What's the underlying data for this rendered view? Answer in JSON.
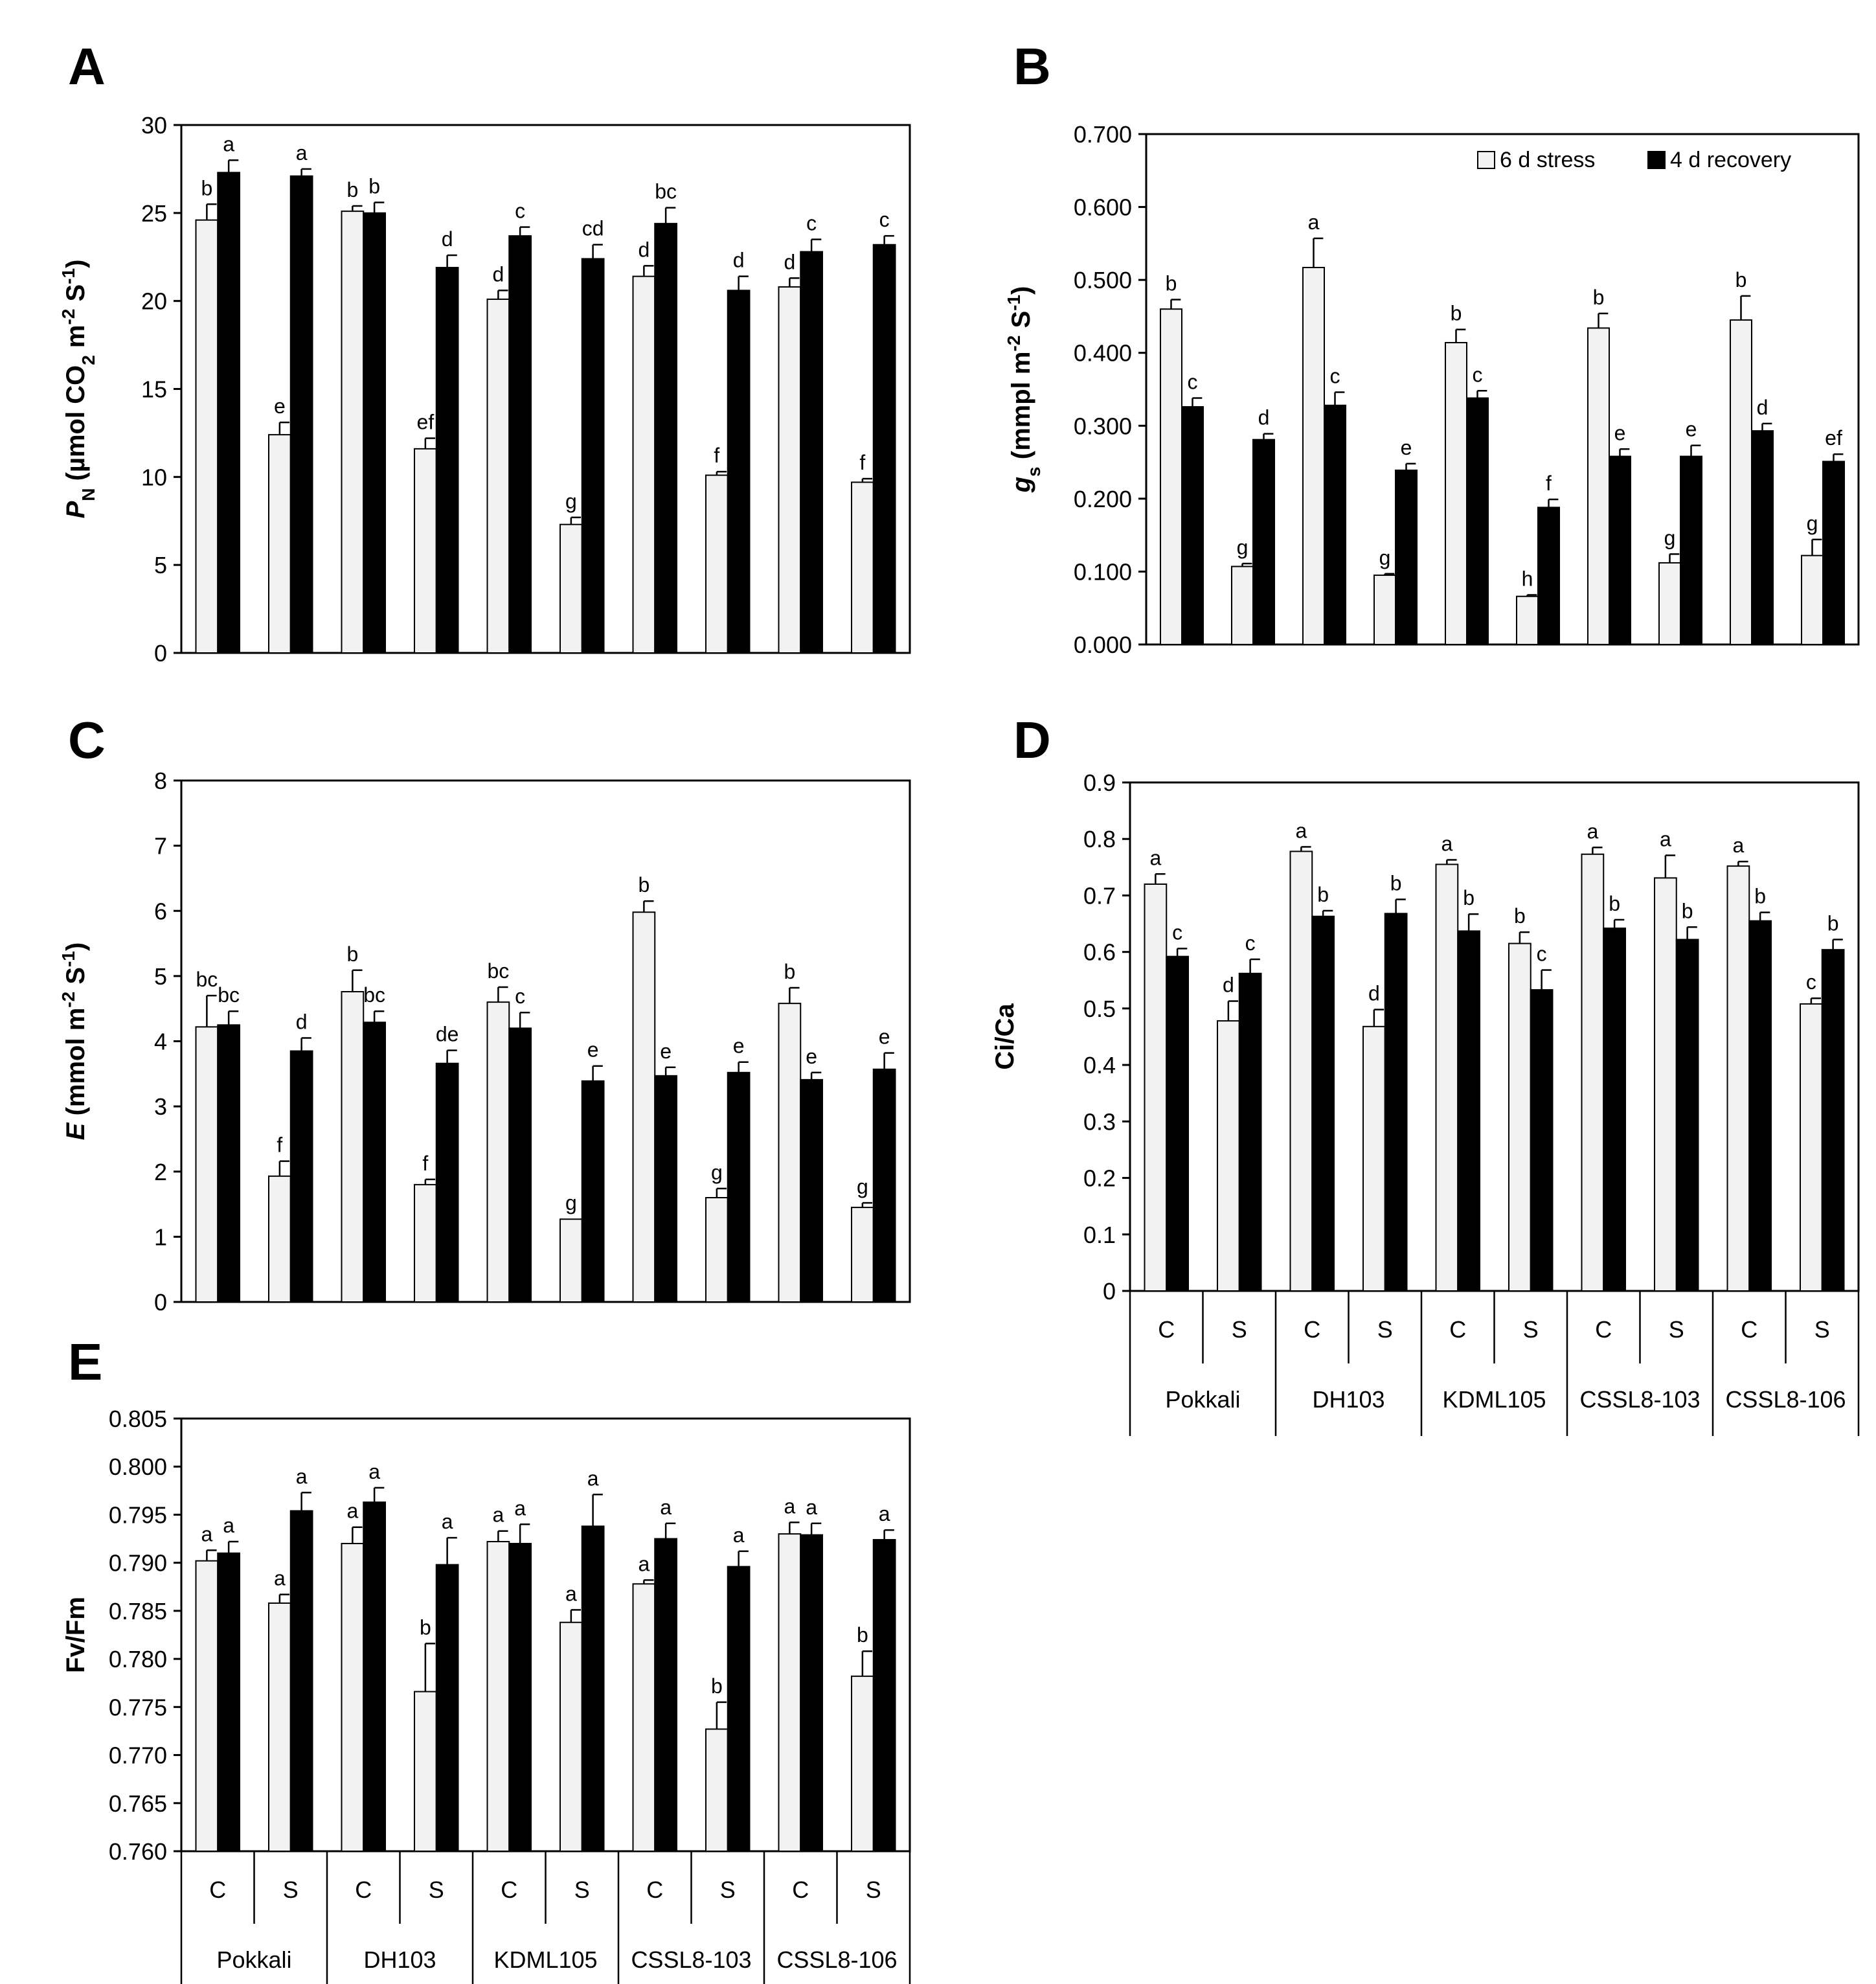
{
  "legend": {
    "series1": "6 d stress",
    "series2": "4 d recovery"
  },
  "colors": {
    "stress": "#f2f2f2",
    "recovery": "#000000",
    "axis": "#000000"
  },
  "xaxis": {
    "treatments": [
      "C",
      "S",
      "C",
      "S",
      "C",
      "S",
      "C",
      "S",
      "C",
      "S"
    ],
    "genotypes": [
      "Pokkali",
      "DH103",
      "KDML105",
      "CSSL8-103",
      "CSSL8-106"
    ]
  },
  "chart_data": [
    {
      "panel": "A",
      "type": "bar",
      "ylabel_parts": [
        "P",
        "N",
        " (µmol CO",
        "2",
        " m",
        "-2",
        " S",
        "-1",
        ")"
      ],
      "ylim": [
        0,
        30
      ],
      "yticks": [
        "0",
        "5",
        "10",
        "15",
        "20",
        "25",
        "30"
      ],
      "categories": [
        "Pokkali C",
        "Pokkali S",
        "DH103 C",
        "DH103 S",
        "KDML105 C",
        "KDML105 S",
        "CSSL8-103 C",
        "CSSL8-103 S",
        "CSSL8-106 C",
        "CSSL8-106 S"
      ],
      "series": [
        {
          "name": "6 d stress",
          "values": [
            24.6,
            12.4,
            25.1,
            11.6,
            20.1,
            7.3,
            21.4,
            10.1,
            20.8,
            9.7
          ],
          "errors": [
            0.9,
            0.7,
            0.3,
            0.6,
            0.5,
            0.4,
            0.6,
            0.2,
            0.5,
            0.2
          ],
          "labels": [
            "b",
            "e",
            "b",
            "ef",
            "d",
            "g",
            "d",
            "f",
            "d",
            "f"
          ]
        },
        {
          "name": "4 d recovery",
          "values": [
            27.3,
            27.1,
            25.0,
            21.9,
            23.7,
            22.4,
            24.4,
            20.6,
            22.8,
            23.2
          ],
          "errors": [
            0.7,
            0.4,
            0.6,
            0.7,
            0.5,
            0.8,
            0.9,
            0.8,
            0.7,
            0.5
          ],
          "labels": [
            "a",
            "a",
            "b",
            "d",
            "c",
            "cd",
            "bc",
            "d",
            "c",
            "c"
          ]
        }
      ]
    },
    {
      "panel": "B",
      "type": "bar",
      "ylabel_parts": [
        "g",
        "s",
        " (mmpl m",
        "-2",
        " S",
        "-1",
        ")"
      ],
      "ylim": [
        0,
        0.7
      ],
      "yticks": [
        "0.000",
        "0.100",
        "0.200",
        "0.300",
        "0.400",
        "0.500",
        "0.600",
        "0.700"
      ],
      "legend": "top-right",
      "categories": [
        "Pokkali C",
        "Pokkali S",
        "DH103 C",
        "DH103 S",
        "KDML105 C",
        "KDML105 S",
        "CSSL8-103 C",
        "CSSL8-103 S",
        "CSSL8-106 C",
        "CSSL8-106 S"
      ],
      "series": [
        {
          "name": "6 d stress",
          "values": [
            0.46,
            0.107,
            0.517,
            0.095,
            0.414,
            0.066,
            0.434,
            0.112,
            0.445,
            0.122
          ],
          "errors": [
            0.013,
            0.004,
            0.04,
            0.002,
            0.018,
            0.002,
            0.02,
            0.012,
            0.033,
            0.022
          ],
          "labels": [
            "b",
            "g",
            "a",
            "g",
            "b",
            "h",
            "b",
            "g",
            "b",
            "g"
          ]
        },
        {
          "name": "4 d recovery",
          "values": [
            0.326,
            0.281,
            0.328,
            0.239,
            0.338,
            0.188,
            0.258,
            0.258,
            0.293,
            0.251
          ],
          "errors": [
            0.012,
            0.008,
            0.018,
            0.009,
            0.01,
            0.011,
            0.01,
            0.015,
            0.01,
            0.01
          ],
          "labels": [
            "c",
            "d",
            "c",
            "e",
            "c",
            "f",
            "e",
            "e",
            "d",
            "ef"
          ]
        }
      ]
    },
    {
      "panel": "C",
      "type": "bar",
      "ylabel_parts": [
        "E",
        "",
        " (mmol m",
        "-2",
        " S",
        "-1",
        ")"
      ],
      "ylim": [
        0,
        8
      ],
      "yticks": [
        "0",
        "1",
        "2",
        "3",
        "4",
        "5",
        "6",
        "7",
        "8"
      ],
      "categories": [
        "Pokkali C",
        "Pokkali S",
        "DH103 C",
        "DH103 S",
        "KDML105 C",
        "KDML105 S",
        "CSSL8-103 C",
        "CSSL8-103 S",
        "CSSL8-106 C",
        "CSSL8-106 S"
      ],
      "series": [
        {
          "name": "6 d stress",
          "values": [
            4.22,
            1.93,
            4.76,
            1.8,
            4.6,
            1.27,
            5.98,
            1.6,
            4.58,
            1.45
          ],
          "errors": [
            0.48,
            0.23,
            0.33,
            0.08,
            0.23,
            0.0,
            0.17,
            0.14,
            0.24,
            0.07
          ],
          "labels": [
            "bc",
            "f",
            "b",
            "f",
            "bc",
            "g",
            "b",
            "g",
            "b",
            "g"
          ]
        },
        {
          "name": "4 d recovery",
          "values": [
            4.25,
            3.85,
            4.29,
            3.66,
            4.2,
            3.39,
            3.47,
            3.52,
            3.41,
            3.57
          ],
          "errors": [
            0.21,
            0.2,
            0.17,
            0.2,
            0.24,
            0.23,
            0.13,
            0.16,
            0.11,
            0.25
          ],
          "labels": [
            "bc",
            "d",
            "bc",
            "de",
            "c",
            "e",
            "e",
            "e",
            "e",
            "e"
          ]
        }
      ]
    },
    {
      "panel": "D",
      "type": "bar",
      "ylabel_parts": [
        "Ci/Ca",
        "",
        "",
        "",
        "",
        "",
        ""
      ],
      "ylim": [
        0,
        0.9
      ],
      "yticks": [
        "0",
        "0.1",
        "0.2",
        "0.3",
        "0.4",
        "0.5",
        "0.6",
        "0.7",
        "0.8",
        "0.9"
      ],
      "categories": [
        "Pokkali C",
        "Pokkali S",
        "DH103 C",
        "DH103 S",
        "KDML105 C",
        "KDML105 S",
        "CSSL8-103 C",
        "CSSL8-103 S",
        "CSSL8-106 C",
        "CSSL8-106 S"
      ],
      "series": [
        {
          "name": "6 d stress",
          "values": [
            0.72,
            0.478,
            0.778,
            0.468,
            0.755,
            0.615,
            0.773,
            0.731,
            0.752,
            0.508
          ],
          "errors": [
            0.018,
            0.035,
            0.008,
            0.03,
            0.008,
            0.02,
            0.012,
            0.04,
            0.008,
            0.01
          ],
          "labels": [
            "a",
            "d",
            "a",
            "d",
            "a",
            "b",
            "a",
            "a",
            "a",
            "c"
          ]
        },
        {
          "name": "4 d recovery",
          "values": [
            0.592,
            0.562,
            0.663,
            0.668,
            0.637,
            0.533,
            0.642,
            0.622,
            0.655,
            0.604
          ],
          "errors": [
            0.014,
            0.025,
            0.01,
            0.025,
            0.03,
            0.035,
            0.015,
            0.022,
            0.015,
            0.018
          ],
          "labels": [
            "c",
            "c",
            "b",
            "b",
            "b",
            "c",
            "b",
            "b",
            "b",
            "b"
          ]
        }
      ]
    },
    {
      "panel": "E",
      "type": "bar",
      "ylabel_parts": [
        "Fv/Fm",
        "",
        "",
        "",
        "",
        "",
        ""
      ],
      "ylim": [
        0.76,
        0.805
      ],
      "yticks": [
        "0.760",
        "0.765",
        "0.770",
        "0.775",
        "0.780",
        "0.785",
        "0.790",
        "0.795",
        "0.800",
        "0.805"
      ],
      "categories": [
        "Pokkali C",
        "Pokkali S",
        "DH103 C",
        "DH103 S",
        "KDML105 C",
        "KDML105 S",
        "CSSL8-103 C",
        "CSSL8-103 S",
        "CSSL8-106 C",
        "CSSL8-106 S"
      ],
      "series": [
        {
          "name": "6 d stress",
          "values": [
            0.7902,
            0.7858,
            0.792,
            0.7766,
            0.7922,
            0.7838,
            0.7878,
            0.7727,
            0.793,
            0.7782
          ],
          "errors": [
            0.0011,
            0.0009,
            0.0017,
            0.005,
            0.0011,
            0.0013,
            0.0004,
            0.0028,
            0.0012,
            0.0026
          ],
          "labels": [
            "a",
            "a",
            "a",
            "b",
            "a",
            "a",
            "a",
            "b",
            "a",
            "b"
          ]
        },
        {
          "name": "4 d recovery",
          "values": [
            0.791,
            0.7954,
            0.7963,
            0.7898,
            0.792,
            0.7938,
            0.7925,
            0.7896,
            0.7929,
            0.7924
          ],
          "errors": [
            0.0012,
            0.0019,
            0.0015,
            0.0028,
            0.002,
            0.0033,
            0.0016,
            0.0016,
            0.0012,
            0.001
          ],
          "labels": [
            "a",
            "a",
            "a",
            "a",
            "a",
            "a",
            "a",
            "a",
            "a",
            "a"
          ]
        }
      ]
    }
  ]
}
